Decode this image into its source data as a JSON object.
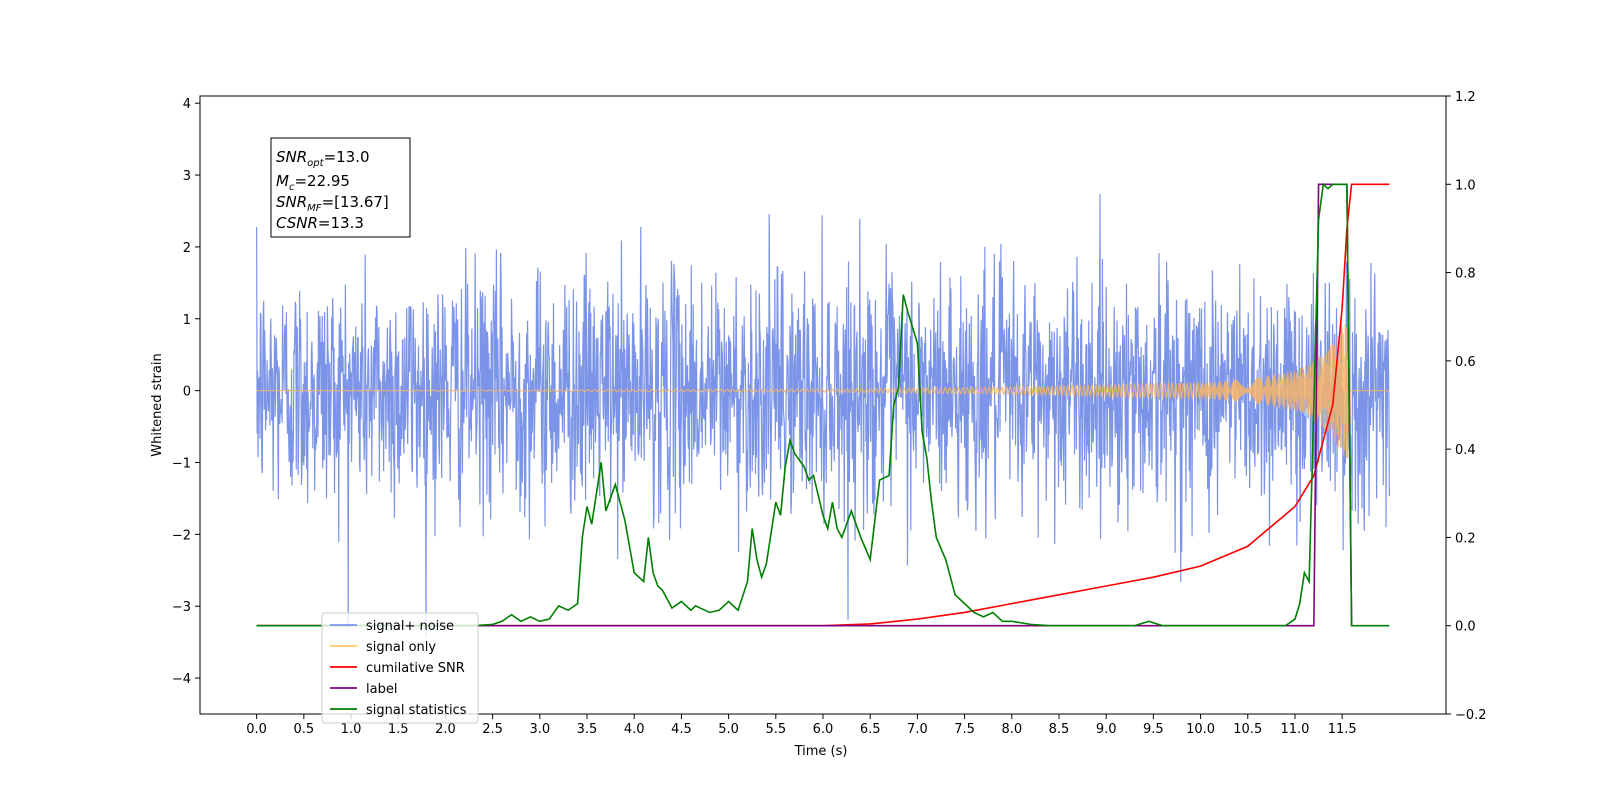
{
  "chart_data": {
    "type": "line",
    "xlabel": "Time (s)",
    "ylabel": "Whitened strain",
    "xlim": [
      -0.6,
      12.6
    ],
    "ylim": [
      -4.5,
      4.1
    ],
    "y2lim": [
      -0.2,
      1.2
    ],
    "x_ticks": [
      "0.0",
      "0.5",
      "1.0",
      "1.5",
      "2.0",
      "2.5",
      "3.0",
      "3.5",
      "4.0",
      "4.5",
      "5.0",
      "5.5",
      "6.0",
      "6.5",
      "7.0",
      "7.5",
      "8.0",
      "8.5",
      "9.0",
      "9.5",
      "10.0",
      "10.5",
      "11.0",
      "11.5"
    ],
    "y_ticks": [
      "−4",
      "−3",
      "−2",
      "−1",
      "0",
      "1",
      "2",
      "3",
      "4"
    ],
    "y2_ticks": [
      "−0.2",
      "0.0",
      "0.2",
      "0.4",
      "0.6",
      "0.8",
      "1.0",
      "1.2"
    ],
    "annotation": {
      "snr_opt": "=13.0",
      "mc": "=22.95",
      "snr_mf": "=[13.67]",
      "csnr": "=13.3"
    },
    "legend": {
      "placement": "lower-left",
      "entries": [
        {
          "label": "signal+ noise",
          "color": "#7b94e8"
        },
        {
          "label": "signal only",
          "color": "#ffc966"
        },
        {
          "label": "cumilative SNR",
          "color": "#ff0000"
        },
        {
          "label": "label",
          "color": "#800080"
        },
        {
          "label": "signal statistics",
          "color": "#008000"
        }
      ]
    },
    "series": [
      {
        "name": "signal+ noise",
        "axis": "left",
        "description_level": "noise std ~0.82 with chirp growing to ~1.2 near 11.5 s"
      },
      {
        "name": "signal only",
        "axis": "left",
        "envelope": {
          "x": [
            0.0,
            6.0,
            8.0,
            9.0,
            10.0,
            10.5,
            11.0,
            11.2,
            11.4,
            11.5,
            11.55
          ],
          "y": [
            0.0,
            0.02,
            0.05,
            0.08,
            0.11,
            0.16,
            0.28,
            0.4,
            0.65,
            0.9,
            1.0
          ]
        }
      },
      {
        "name": "cumilative SNR",
        "axis": "right",
        "x": [
          0.0,
          6.0,
          6.5,
          7.0,
          7.5,
          8.0,
          8.5,
          9.0,
          9.5,
          10.0,
          10.5,
          11.0,
          11.2,
          11.4,
          11.5,
          11.55,
          11.6,
          12.0
        ],
        "y": [
          0.0,
          0.0,
          0.004,
          0.015,
          0.03,
          0.05,
          0.07,
          0.09,
          0.11,
          0.135,
          0.18,
          0.27,
          0.34,
          0.5,
          0.72,
          0.9,
          1.0,
          1.0
        ]
      },
      {
        "name": "label",
        "axis": "right",
        "x": [
          0.0,
          11.2,
          11.25,
          11.55,
          11.6
        ],
        "y": [
          0.0,
          0.0,
          1.0,
          1.0,
          0.0
        ]
      },
      {
        "name": "signal statistics",
        "axis": "right",
        "x": [
          0.0,
          2.3,
          2.5,
          2.6,
          2.7,
          2.8,
          2.9,
          3.0,
          3.1,
          3.2,
          3.3,
          3.4,
          3.45,
          3.5,
          3.55,
          3.6,
          3.65,
          3.7,
          3.75,
          3.8,
          3.9,
          4.0,
          4.1,
          4.15,
          4.2,
          4.25,
          4.3,
          4.4,
          4.5,
          4.6,
          4.65,
          4.7,
          4.8,
          4.9,
          5.0,
          5.1,
          5.2,
          5.25,
          5.3,
          5.35,
          5.4,
          5.5,
          5.55,
          5.6,
          5.65,
          5.7,
          5.8,
          5.85,
          5.9,
          6.0,
          6.05,
          6.1,
          6.15,
          6.2,
          6.3,
          6.4,
          6.5,
          6.6,
          6.7,
          6.75,
          6.8,
          6.85,
          6.9,
          7.0,
          7.05,
          7.1,
          7.15,
          7.2,
          7.3,
          7.4,
          7.5,
          7.6,
          7.7,
          7.8,
          7.9,
          8.0,
          8.2,
          8.4,
          9.3,
          9.45,
          9.6,
          10.9,
          11.0,
          11.05,
          11.1,
          11.15,
          11.2,
          11.25,
          11.3,
          11.35,
          11.4,
          11.55,
          11.6,
          11.65,
          12.0
        ],
        "y": [
          0.0,
          0.0,
          0.003,
          0.01,
          0.025,
          0.01,
          0.02,
          0.01,
          0.015,
          0.045,
          0.035,
          0.05,
          0.2,
          0.27,
          0.23,
          0.3,
          0.37,
          0.26,
          0.29,
          0.32,
          0.24,
          0.12,
          0.1,
          0.2,
          0.12,
          0.09,
          0.08,
          0.04,
          0.055,
          0.035,
          0.045,
          0.04,
          0.03,
          0.035,
          0.055,
          0.035,
          0.1,
          0.22,
          0.15,
          0.11,
          0.14,
          0.28,
          0.25,
          0.36,
          0.42,
          0.39,
          0.36,
          0.33,
          0.34,
          0.25,
          0.22,
          0.28,
          0.22,
          0.2,
          0.26,
          0.2,
          0.15,
          0.33,
          0.34,
          0.5,
          0.54,
          0.75,
          0.71,
          0.64,
          0.44,
          0.38,
          0.28,
          0.2,
          0.15,
          0.07,
          0.05,
          0.03,
          0.02,
          0.03,
          0.01,
          0.01,
          0.003,
          0.0,
          0.0,
          0.01,
          0.0,
          0.0,
          0.015,
          0.05,
          0.12,
          0.1,
          0.5,
          0.92,
          1.0,
          0.99,
          1.0,
          1.0,
          0.0,
          0.0,
          0.0
        ]
      }
    ]
  }
}
